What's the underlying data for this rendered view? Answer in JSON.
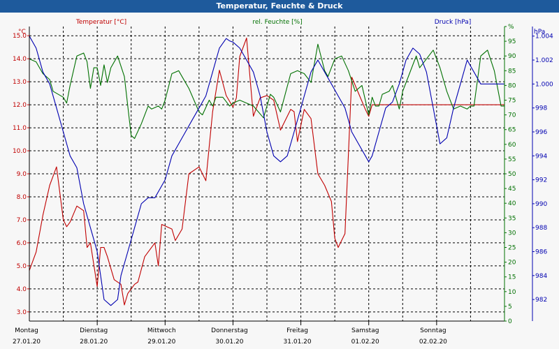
{
  "window": {
    "title": "Temperatur, Feuchte & Druck"
  },
  "colors": {
    "temp": "#c00000",
    "humid": "#007000",
    "press": "#0000b0",
    "grid": "#000000",
    "bg": "#f7f7f7"
  },
  "chart_data": {
    "type": "line",
    "title": "Temperatur, Feuchte & Druck",
    "x_unit": "days since Mon 27.01.20 00:00",
    "xlim": [
      0,
      7
    ],
    "days": [
      {
        "name": "Montag",
        "date": "27.01.20"
      },
      {
        "name": "Dienstag",
        "date": "28.01.20"
      },
      {
        "name": "Mittwoch",
        "date": "29.01.20"
      },
      {
        "name": "Donnerstag",
        "date": "30.01.20"
      },
      {
        "name": "Freitag",
        "date": "31.01.20"
      },
      {
        "name": "Samstag",
        "date": "01.02.20"
      },
      {
        "name": "Sonntag",
        "date": "02.02.20"
      }
    ],
    "axes": {
      "temp": {
        "label": "Temperatur [°C]",
        "unit": "°C",
        "ylim": [
          2.6,
          15.4
        ],
        "ticks": [
          "3.0",
          "4.0",
          "5.0",
          "6.0",
          "7.0",
          "8.0",
          "9.0",
          "10.0",
          "11.0",
          "12.0",
          "13.0",
          "14.0",
          "15.0"
        ]
      },
      "humid": {
        "label": "rel. Feuchte [%]",
        "unit": "%",
        "ylim": [
          0,
          100
        ],
        "ticks": [
          "0",
          "5",
          "10",
          "15",
          "20",
          "25",
          "30",
          "35",
          "40",
          "45",
          "50",
          "55",
          "60",
          "65",
          "70",
          "75",
          "80",
          "85",
          "90",
          "95",
          "%"
        ]
      },
      "press": {
        "label": "Druck [hPa]",
        "unit": "hPa",
        "ylim": [
          980.2,
          1004.8
        ],
        "ticks": [
          "982",
          "984",
          "986",
          "988",
          "990",
          "992",
          "994",
          "996",
          "998",
          "1.000",
          "1.002",
          "1.004"
        ]
      }
    },
    "series": [
      {
        "name": "Temperatur",
        "axis": "temp",
        "color": "#c00000",
        "x": [
          0,
          0.1,
          0.2,
          0.3,
          0.4,
          0.5,
          0.55,
          0.6,
          0.7,
          0.8,
          0.85,
          0.9,
          1.0,
          1.05,
          1.1,
          1.15,
          1.25,
          1.35,
          1.4,
          1.45,
          1.55,
          1.6,
          1.7,
          1.85,
          1.9,
          1.95,
          2.1,
          2.15,
          2.25,
          2.35,
          2.5,
          2.6,
          2.7,
          2.8,
          2.9,
          3.0,
          3.05,
          3.1,
          3.2,
          3.3,
          3.4,
          3.5,
          3.6,
          3.7,
          3.85,
          3.9,
          3.95,
          4.05,
          4.15,
          4.25,
          4.35,
          4.45,
          4.5,
          4.55,
          4.65,
          4.75,
          4.85,
          4.95,
          5.0,
          5.05,
          5.1,
          5.2,
          5.3,
          5.35,
          5.45,
          5.55,
          5.65,
          5.75,
          5.85,
          5.95,
          6.0,
          6.05,
          6.1,
          6.2,
          6.3,
          6.4,
          6.5,
          6.55,
          6.65,
          6.7,
          6.8,
          6.9,
          7.0
        ],
        "values": [
          4.8,
          5.6,
          7.2,
          8.5,
          9.3,
          7.0,
          6.7,
          6.9,
          7.6,
          7.4,
          5.8,
          6.0,
          4.1,
          5.8,
          5.8,
          5.4,
          4.4,
          4.2,
          3.3,
          3.8,
          4.2,
          4.3,
          5.4,
          6.0,
          5.0,
          6.8,
          6.6,
          6.1,
          6.6,
          9.0,
          9.3,
          8.7,
          11.7,
          13.5,
          12.4,
          11.9,
          12.3,
          14.1,
          14.9,
          11.5,
          12.3,
          12.4,
          12.2,
          10.9,
          11.8,
          11.7,
          10.4,
          11.8,
          11.4,
          9.0,
          8.5,
          7.8,
          6.2,
          5.8,
          6.4,
          13.2,
          12.5,
          11.8,
          11.5,
          12.0,
          12.0,
          12.0,
          12.0,
          12.0,
          12.0,
          12.0,
          12.0,
          12.0,
          12.0,
          12.0,
          12.0,
          12.0,
          12.0,
          12.0,
          12.0,
          12.0,
          12.0,
          12.0,
          12.0,
          12.0,
          12.0,
          12.0,
          12.0
        ]
      },
      {
        "name": "rel. Feuchte",
        "axis": "humid",
        "color": "#007000",
        "x": [
          0,
          0.1,
          0.2,
          0.3,
          0.35,
          0.5,
          0.55,
          0.6,
          0.7,
          0.8,
          0.85,
          0.9,
          0.95,
          1.0,
          1.05,
          1.1,
          1.15,
          1.2,
          1.3,
          1.4,
          1.5,
          1.55,
          1.65,
          1.75,
          1.8,
          1.9,
          1.95,
          2.0,
          2.1,
          2.2,
          2.3,
          2.35,
          2.5,
          2.55,
          2.65,
          2.7,
          2.75,
          2.85,
          2.95,
          3.0,
          3.1,
          3.2,
          3.3,
          3.45,
          3.55,
          3.6,
          3.7,
          3.85,
          3.95,
          4.05,
          4.15,
          4.25,
          4.35,
          4.4,
          4.5,
          4.6,
          4.7,
          4.8,
          4.9,
          5.0,
          5.05,
          5.1,
          5.15,
          5.2,
          5.3,
          5.35,
          5.45,
          5.5,
          5.6,
          5.7,
          5.75,
          5.85,
          5.95,
          6.05,
          6.15,
          6.25,
          6.35,
          6.45,
          6.5,
          6.55,
          6.65,
          6.75,
          6.85,
          6.95,
          7.0
        ],
        "values": [
          89,
          88,
          84,
          82,
          78,
          76,
          74,
          80,
          90,
          91,
          88,
          79,
          86,
          86,
          80,
          87,
          81,
          86,
          90,
          83,
          63,
          62,
          67,
          73,
          72,
          73,
          72,
          75,
          84,
          85,
          81,
          79,
          71,
          70,
          75,
          73,
          76,
          76,
          73,
          74,
          75,
          74,
          73,
          69,
          77,
          76,
          71,
          84,
          85,
          84,
          81,
          94,
          85,
          83,
          89,
          90,
          85,
          78,
          80,
          70,
          76,
          73,
          73,
          77,
          78,
          80,
          72,
          78,
          84,
          90,
          86,
          89,
          92,
          86,
          78,
          72,
          73,
          72,
          73,
          73,
          90,
          92,
          85,
          73,
          73
        ]
      },
      {
        "name": "Druck",
        "axis": "press",
        "color": "#0000b0",
        "x": [
          0,
          0.1,
          0.2,
          0.3,
          0.4,
          0.5,
          0.6,
          0.7,
          0.8,
          0.9,
          0.95,
          1.0,
          1.1,
          1.2,
          1.3,
          1.35,
          1.45,
          1.55,
          1.65,
          1.75,
          1.85,
          2.0,
          2.1,
          2.2,
          2.3,
          2.4,
          2.5,
          2.6,
          2.7,
          2.8,
          2.9,
          2.95,
          3.0,
          3.1,
          3.2,
          3.3,
          3.4,
          3.5,
          3.6,
          3.7,
          3.8,
          3.9,
          4.0,
          4.05,
          4.15,
          4.25,
          4.35,
          4.45,
          4.55,
          4.65,
          4.75,
          4.85,
          4.95,
          5.0,
          5.05,
          5.15,
          5.25,
          5.35,
          5.45,
          5.55,
          5.65,
          5.75,
          5.85,
          5.95,
          6.05,
          6.15,
          6.25,
          6.35,
          6.45,
          6.5,
          6.55,
          6.65,
          6.75,
          6.85,
          6.95,
          7.0
        ],
        "values": [
          1004,
          1003,
          1001,
          1000,
          998,
          996,
          994,
          993,
          990,
          988,
          987,
          986,
          982,
          981.5,
          982,
          984,
          986,
          988,
          990,
          990.5,
          990.5,
          992,
          994,
          995,
          996,
          997,
          998,
          999,
          1001,
          1003,
          1003.8,
          1003.6,
          1003.5,
          1003,
          1002,
          1001,
          999,
          996,
          994,
          993.5,
          994,
          996,
          998,
          999,
          1001,
          1002,
          1001,
          1000,
          999,
          998,
          996,
          995,
          994,
          993.5,
          994,
          996,
          998,
          998.5,
          1000,
          1002,
          1003,
          1002.5,
          1001,
          998,
          995,
          995.5,
          998,
          1000,
          1002,
          1001.5,
          1001,
          1000,
          1000,
          1000,
          1000,
          1000
        ]
      }
    ]
  }
}
